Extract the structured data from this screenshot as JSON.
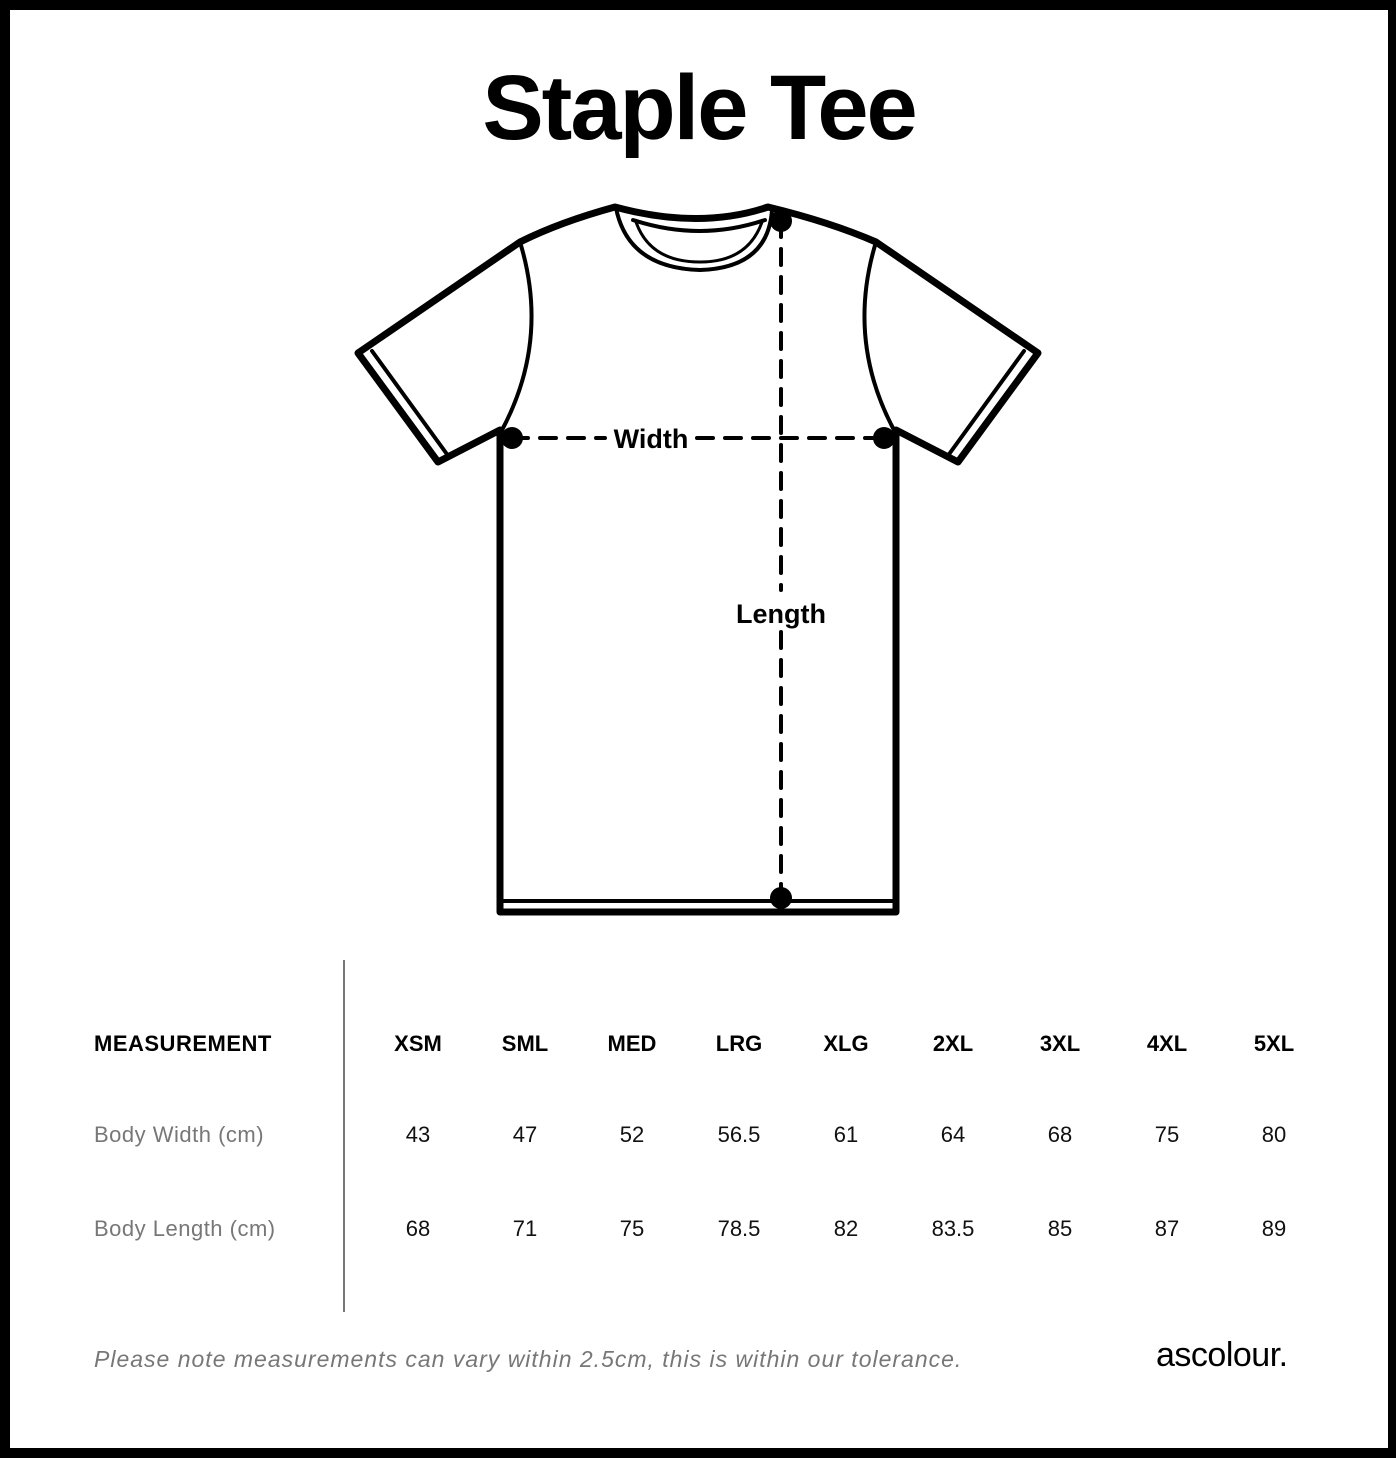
{
  "title": "Staple Tee",
  "diagram": {
    "width_label": "Width",
    "length_label": "Length"
  },
  "table": {
    "header_label": "MEASUREMENT",
    "sizes": [
      "XSM",
      "SML",
      "MED",
      "LRG",
      "XLG",
      "2XL",
      "3XL",
      "4XL",
      "5XL"
    ],
    "rows": [
      {
        "label": "Body Width (cm)",
        "values": [
          "43",
          "47",
          "52",
          "56.5",
          "61",
          "64",
          "68",
          "75",
          "80"
        ]
      },
      {
        "label": "Body Length (cm)",
        "values": [
          "68",
          "71",
          "75",
          "78.5",
          "82",
          "83.5",
          "85",
          "87",
          "89"
        ]
      }
    ]
  },
  "note": "Please note measurements can vary within 2.5cm, this is within our tolerance.",
  "brand": "ascolour."
}
